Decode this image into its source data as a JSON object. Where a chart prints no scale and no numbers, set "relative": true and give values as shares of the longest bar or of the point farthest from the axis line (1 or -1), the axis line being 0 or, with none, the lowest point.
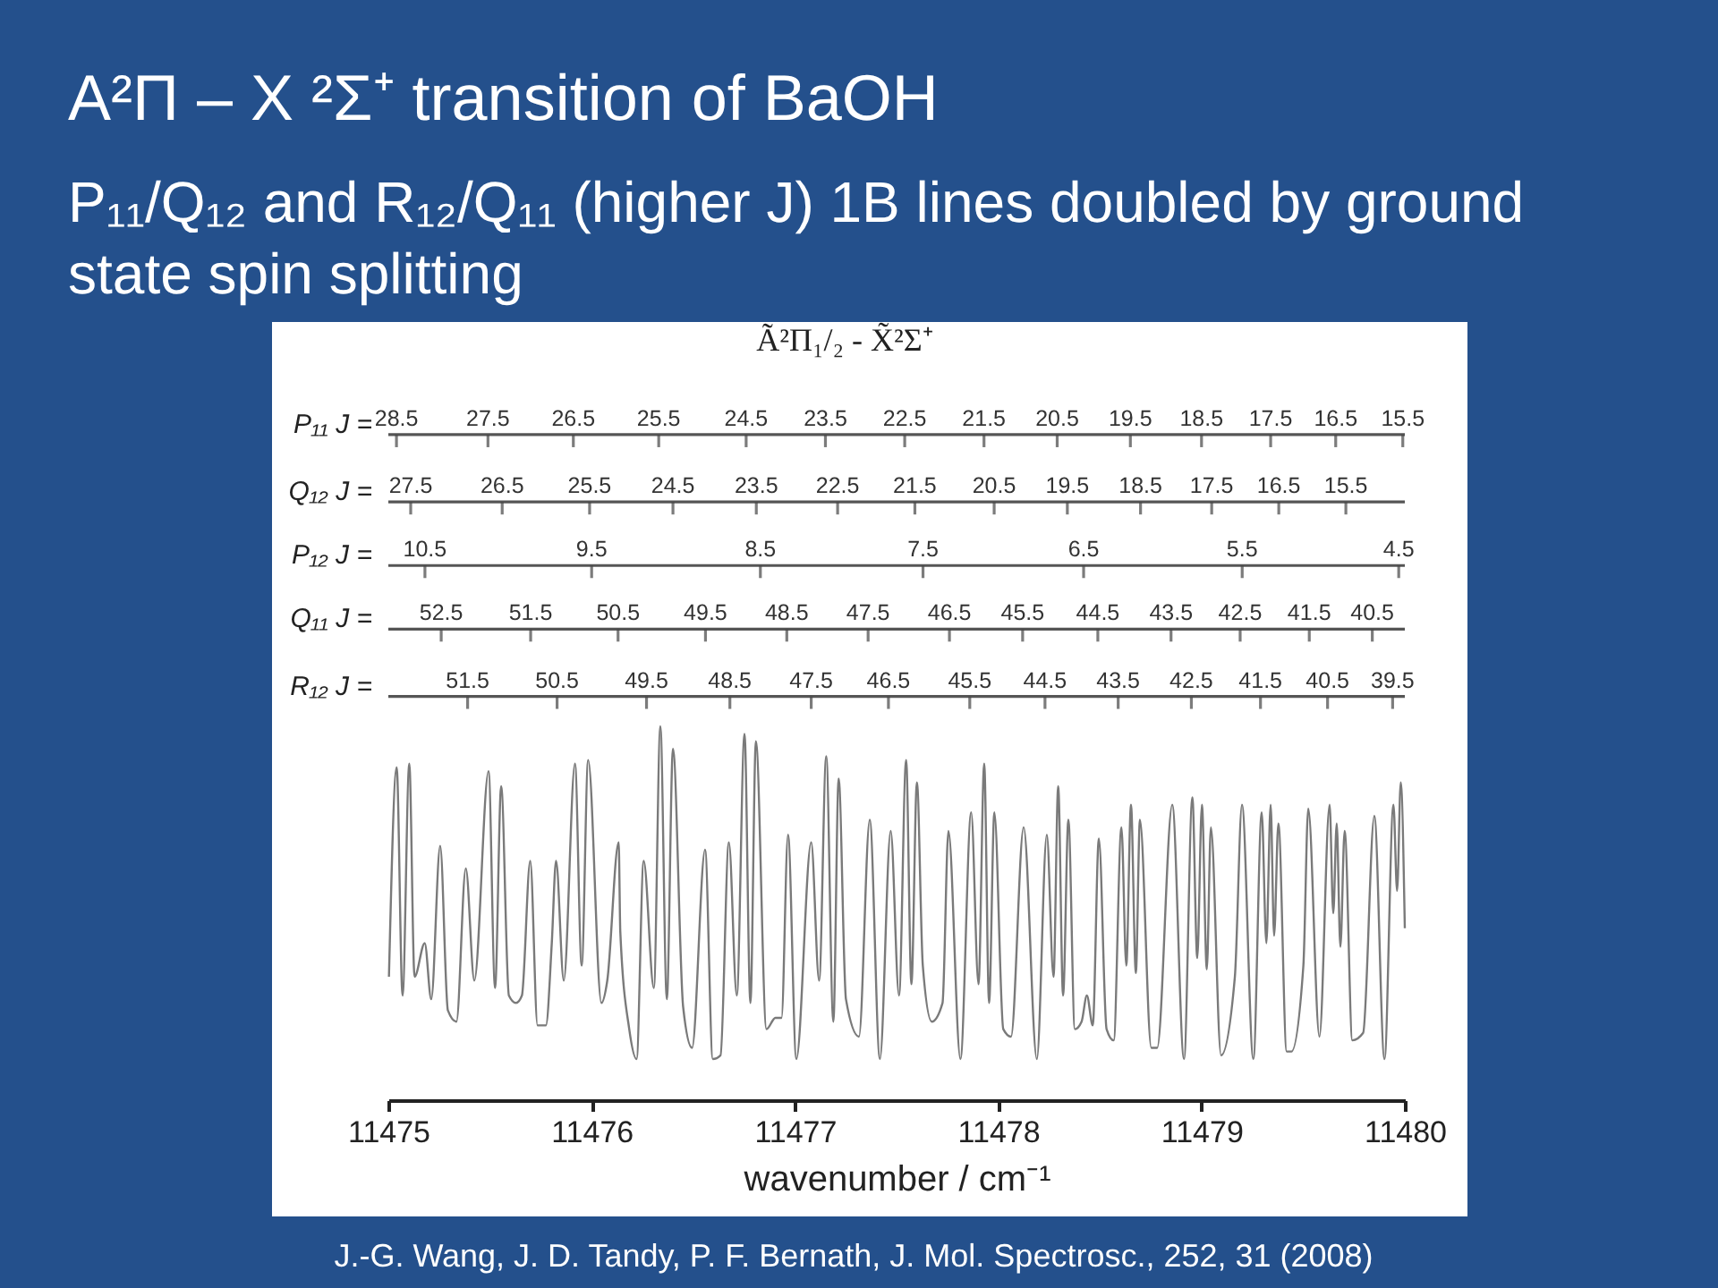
{
  "chart_data": {
    "type": "line",
    "relative": true,
    "color": "#7a7a7a",
    "title": "A²Π – X ²Σ⁺ transition of BaOH",
    "subtitle": "P₁₁/Q₁₂ and R₁₂/Q₁₁ (higher J) 1B lines doubled by ground state spin splitting",
    "xlabel": "wavenumber / cm⁻¹",
    "xlim": [
      11475,
      11480
    ],
    "xticks": [
      11475,
      11476,
      11477,
      11478,
      11479,
      11480
    ],
    "ref_lines": [
      {
        "axis": "y",
        "value": 1.78,
        "label": "P₁₁ J =",
        "color": "#555555"
      },
      {
        "axis": "y",
        "value": 1.6,
        "label": "Q₁₂ J =",
        "color": "#555555"
      },
      {
        "axis": "y",
        "value": 1.43,
        "label": "P₁₂ J =",
        "color": "#555555"
      },
      {
        "axis": "y",
        "value": 1.26,
        "label": "Q₁₁ J =",
        "color": "#555555"
      },
      {
        "axis": "y",
        "value": 1.08,
        "label": "R₁₂ J =",
        "color": "#555555"
      }
    ],
    "annotations": [
      "Ã²Π₁/₂ - X̃²Σ⁺",
      "J.-G. Wang, J. D. Tandy, P. F. Bernath, J. Mol. Spectrosc., 252, 31 (2008)",
      {
        "text": "28.5",
        "x": 11475.04,
        "y": 1.78
      },
      {
        "text": "27.5",
        "x": 11475.49,
        "y": 1.78
      },
      {
        "text": "26.5",
        "x": 11475.91,
        "y": 1.78
      },
      {
        "text": "25.5",
        "x": 11476.33,
        "y": 1.78
      },
      {
        "text": "24.5",
        "x": 11476.76,
        "y": 1.78
      },
      {
        "text": "23.5",
        "x": 11477.15,
        "y": 1.78
      },
      {
        "text": "22.5",
        "x": 11477.54,
        "y": 1.78
      },
      {
        "text": "21.5",
        "x": 11477.93,
        "y": 1.78
      },
      {
        "text": "20.5",
        "x": 11478.29,
        "y": 1.78
      },
      {
        "text": "19.5",
        "x": 11478.65,
        "y": 1.78
      },
      {
        "text": "18.5",
        "x": 11479.0,
        "y": 1.78
      },
      {
        "text": "17.5",
        "x": 11479.34,
        "y": 1.78
      },
      {
        "text": "16.5",
        "x": 11479.66,
        "y": 1.78
      },
      {
        "text": "15.5",
        "x": 11479.99,
        "y": 1.78
      },
      {
        "text": "27.5",
        "x": 11475.11,
        "y": 1.6
      },
      {
        "text": "26.5",
        "x": 11475.56,
        "y": 1.6
      },
      {
        "text": "25.5",
        "x": 11475.99,
        "y": 1.6
      },
      {
        "text": "24.5",
        "x": 11476.4,
        "y": 1.6
      },
      {
        "text": "23.5",
        "x": 11476.81,
        "y": 1.6
      },
      {
        "text": "22.5",
        "x": 11477.21,
        "y": 1.6
      },
      {
        "text": "21.5",
        "x": 11477.59,
        "y": 1.6
      },
      {
        "text": "20.5",
        "x": 11477.98,
        "y": 1.6
      },
      {
        "text": "19.5",
        "x": 11478.34,
        "y": 1.6
      },
      {
        "text": "18.5",
        "x": 11478.7,
        "y": 1.6
      },
      {
        "text": "17.5",
        "x": 11479.05,
        "y": 1.6
      },
      {
        "text": "16.5",
        "x": 11479.38,
        "y": 1.6
      },
      {
        "text": "15.5",
        "x": 11479.71,
        "y": 1.6
      },
      {
        "text": "10.5",
        "x": 11475.18,
        "y": 1.43
      },
      {
        "text": "9.5",
        "x": 11476.0,
        "y": 1.43
      },
      {
        "text": "8.5",
        "x": 11476.83,
        "y": 1.43
      },
      {
        "text": "7.5",
        "x": 11477.63,
        "y": 1.43
      },
      {
        "text": "6.5",
        "x": 11478.42,
        "y": 1.43
      },
      {
        "text": "5.5",
        "x": 11479.2,
        "y": 1.43
      },
      {
        "text": "4.5",
        "x": 11479.97,
        "y": 1.43
      },
      {
        "text": "52.5",
        "x": 11475.26,
        "y": 1.26
      },
      {
        "text": "51.5",
        "x": 11475.7,
        "y": 1.26
      },
      {
        "text": "50.5",
        "x": 11476.13,
        "y": 1.26
      },
      {
        "text": "49.5",
        "x": 11476.56,
        "y": 1.26
      },
      {
        "text": "48.5",
        "x": 11476.96,
        "y": 1.26
      },
      {
        "text": "47.5",
        "x": 11477.36,
        "y": 1.26
      },
      {
        "text": "46.5",
        "x": 11477.76,
        "y": 1.26
      },
      {
        "text": "45.5",
        "x": 11478.12,
        "y": 1.26
      },
      {
        "text": "44.5",
        "x": 11478.49,
        "y": 1.26
      },
      {
        "text": "43.5",
        "x": 11478.85,
        "y": 1.26
      },
      {
        "text": "42.5",
        "x": 11479.19,
        "y": 1.26
      },
      {
        "text": "41.5",
        "x": 11479.53,
        "y": 1.26
      },
      {
        "text": "40.5",
        "x": 11479.84,
        "y": 1.26
      },
      {
        "text": "51.5",
        "x": 11475.39,
        "y": 1.08
      },
      {
        "text": "50.5",
        "x": 11475.83,
        "y": 1.08
      },
      {
        "text": "49.5",
        "x": 11476.27,
        "y": 1.08
      },
      {
        "text": "48.5",
        "x": 11476.68,
        "y": 1.08
      },
      {
        "text": "47.5",
        "x": 11477.08,
        "y": 1.08
      },
      {
        "text": "46.5",
        "x": 11477.46,
        "y": 1.08
      },
      {
        "text": "45.5",
        "x": 11477.86,
        "y": 1.08
      },
      {
        "text": "44.5",
        "x": 11478.23,
        "y": 1.08
      },
      {
        "text": "43.5",
        "x": 11478.59,
        "y": 1.08
      },
      {
        "text": "42.5",
        "x": 11478.95,
        "y": 1.08
      },
      {
        "text": "41.5",
        "x": 11479.29,
        "y": 1.08
      },
      {
        "text": "40.5",
        "x": 11479.62,
        "y": 1.08
      },
      {
        "text": "39.5",
        "x": 11479.94,
        "y": 1.08
      }
    ],
    "x": [
      11475.003,
      11475.041,
      11475.07,
      11475.103,
      11475.129,
      11475.179,
      11475.211,
      11475.255,
      11475.293,
      11475.335,
      11475.381,
      11475.423,
      11475.493,
      11475.525,
      11475.555,
      11475.593,
      11475.628,
      11475.657,
      11475.698,
      11475.734,
      11475.775,
      11475.804,
      11475.825,
      11475.863,
      11475.918,
      11475.951,
      11475.983,
      11476.048,
      11476.077,
      11476.133,
      11476.141,
      11476.185,
      11476.221,
      11476.256,
      11476.306,
      11476.338,
      11476.37,
      11476.4,
      11476.45,
      11476.494,
      11476.558,
      11476.596,
      11476.634,
      11476.675,
      11476.714,
      11476.752,
      11476.781,
      11476.808,
      11476.86,
      11476.904,
      11476.934,
      11476.966,
      11477.007,
      11477.08,
      11477.119,
      11477.154,
      11477.189,
      11477.215,
      11477.251,
      11477.315,
      11477.368,
      11477.418,
      11477.471,
      11477.512,
      11477.547,
      11477.573,
      11477.6,
      11477.629,
      11477.673,
      11477.726,
      11477.755,
      11477.814,
      11477.867,
      11477.903,
      11477.931,
      11477.955,
      11477.981,
      11478.025,
      11478.063,
      11478.125,
      11478.19,
      11478.239,
      11478.272,
      11478.295,
      11478.319,
      11478.345,
      11478.377,
      11478.41,
      11478.436,
      11478.465,
      11478.495,
      11478.533,
      11478.568,
      11478.606,
      11478.63,
      11478.653,
      11478.677,
      11478.697,
      11478.753,
      11478.782,
      11478.856,
      11478.914,
      11478.955,
      11478.979,
      11479.002,
      11479.026,
      11479.046,
      11479.096,
      11479.164,
      11479.199,
      11479.255,
      11479.296,
      11479.319,
      11479.34,
      11479.357,
      11479.378,
      11479.419,
      11479.442,
      11479.501,
      11479.525,
      11479.58,
      11479.63,
      11479.648,
      11479.665,
      11479.683,
      11479.704,
      11479.742,
      11479.795,
      11479.85,
      11479.9,
      11479.944,
      11479.962,
      11479.98,
      11480.0
    ],
    "values": [
      0.33,
      0.89,
      0.28,
      0.9,
      0.33,
      0.42,
      0.27,
      0.68,
      0.24,
      0.21,
      0.62,
      0.32,
      0.88,
      0.3,
      0.84,
      0.28,
      0.26,
      0.28,
      0.64,
      0.2,
      0.2,
      0.42,
      0.64,
      0.32,
      0.9,
      0.36,
      0.91,
      0.26,
      0.32,
      0.69,
      0.45,
      0.19,
      0.11,
      0.64,
      0.3,
      1.0,
      0.27,
      0.94,
      0.25,
      0.14,
      0.67,
      0.11,
      0.12,
      0.69,
      0.28,
      0.98,
      0.26,
      0.96,
      0.19,
      0.22,
      0.22,
      0.71,
      0.11,
      0.69,
      0.32,
      0.92,
      0.21,
      0.86,
      0.27,
      0.17,
      0.75,
      0.11,
      0.72,
      0.28,
      0.91,
      0.31,
      0.85,
      0.36,
      0.21,
      0.26,
      0.72,
      0.11,
      0.77,
      0.31,
      0.9,
      0.26,
      0.77,
      0.19,
      0.17,
      0.73,
      0.11,
      0.71,
      0.33,
      0.84,
      0.28,
      0.75,
      0.19,
      0.21,
      0.28,
      0.2,
      0.7,
      0.19,
      0.16,
      0.73,
      0.36,
      0.79,
      0.34,
      0.75,
      0.14,
      0.14,
      0.79,
      0.11,
      0.81,
      0.38,
      0.79,
      0.35,
      0.73,
      0.12,
      0.33,
      0.79,
      0.11,
      0.77,
      0.42,
      0.79,
      0.44,
      0.74,
      0.13,
      0.13,
      0.36,
      0.78,
      0.17,
      0.79,
      0.5,
      0.74,
      0.41,
      0.72,
      0.16,
      0.18,
      0.76,
      0.11,
      0.79,
      0.56,
      0.85,
      0.46
    ]
  }
}
